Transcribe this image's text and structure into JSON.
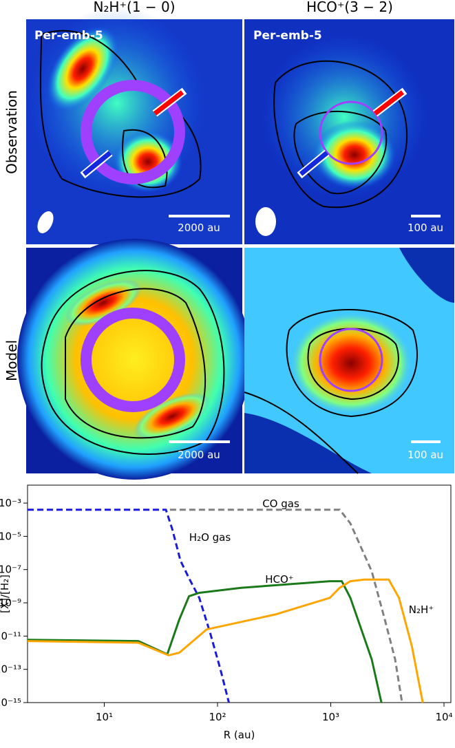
{
  "panels": {
    "column_titles": [
      "N₂H⁺(1 − 0)",
      "HCO⁺(3 − 2)"
    ],
    "row_labels": [
      "Observation",
      "Model"
    ],
    "source_labels": [
      "Per-emb-5",
      "Per-emb-5"
    ],
    "scale_bars": [
      "2000 au",
      "100 au",
      "2000 au",
      "100 au"
    ]
  },
  "chart_data": {
    "type": "line",
    "x_label": "R (au)",
    "y_label": "[X]/[H₂]",
    "xscale": "log",
    "yscale": "log",
    "xlim": [
      2.1,
      11500
    ],
    "ylim": [
      1e-15,
      0.012
    ],
    "xticks": [
      {
        "value": 10,
        "label": "10¹"
      },
      {
        "value": 100,
        "label": "10²"
      },
      {
        "value": 1000,
        "label": "10³"
      },
      {
        "value": 10000,
        "label": "10⁴"
      }
    ],
    "yticks": [
      {
        "value": 1e-15,
        "label": "10⁻¹⁵"
      },
      {
        "value": 1e-13,
        "label": "10⁻¹³"
      },
      {
        "value": 1e-11,
        "label": "10⁻¹¹"
      },
      {
        "value": 1e-09,
        "label": "10⁻⁹"
      },
      {
        "value": 1e-07,
        "label": "10⁻⁷"
      },
      {
        "value": 1e-05,
        "label": "10⁻⁵"
      },
      {
        "value": 0.001,
        "label": "10⁻³"
      }
    ],
    "series": [
      {
        "name": "CO gas",
        "color": "#808080",
        "dash": true,
        "x": [
          38,
          1200,
          1490,
          2300,
          3000,
          3700,
          4260
        ],
        "values": [
          0.0004,
          0.0004,
          6e-05,
          8e-08,
          1e-10,
          4e-13,
          1e-15
        ]
      },
      {
        "name": "H₂O gas",
        "color": "#1a1adc",
        "dash": true,
        "x": [
          2.1,
          35,
          40,
          47,
          56,
          69,
          86,
          106,
          126
        ],
        "values": [
          0.0004,
          0.0004,
          2.5e-05,
          3.5e-07,
          3e-08,
          2e-09,
          1.6e-11,
          1e-13,
          1e-15
        ]
      },
      {
        "name": "HCO⁺",
        "color": "#1a7a1a",
        "dash": false,
        "x": [
          2.1,
          20,
          36,
          46,
          56,
          69,
          161,
          980,
          1250,
          1490,
          2300,
          2800
        ],
        "values": [
          6e-12,
          5e-12,
          8e-13,
          1e-10,
          2.5e-09,
          4e-09,
          8e-09,
          2e-08,
          2e-08,
          2e-09,
          4e-13,
          1e-15
        ]
      },
      {
        "name": "N₂H⁺",
        "color": "#ffa500",
        "dash": false,
        "x": [
          2.1,
          20,
          37,
          46,
          80,
          325,
          980,
          1200,
          1490,
          1980,
          3250,
          4000,
          5200,
          6500
        ],
        "values": [
          5e-12,
          4e-12,
          7e-13,
          1e-12,
          2.5e-11,
          2e-10,
          2e-09,
          8e-09,
          2e-08,
          2.5e-08,
          2.5e-08,
          2e-09,
          2.5e-12,
          1e-15
        ]
      }
    ]
  }
}
